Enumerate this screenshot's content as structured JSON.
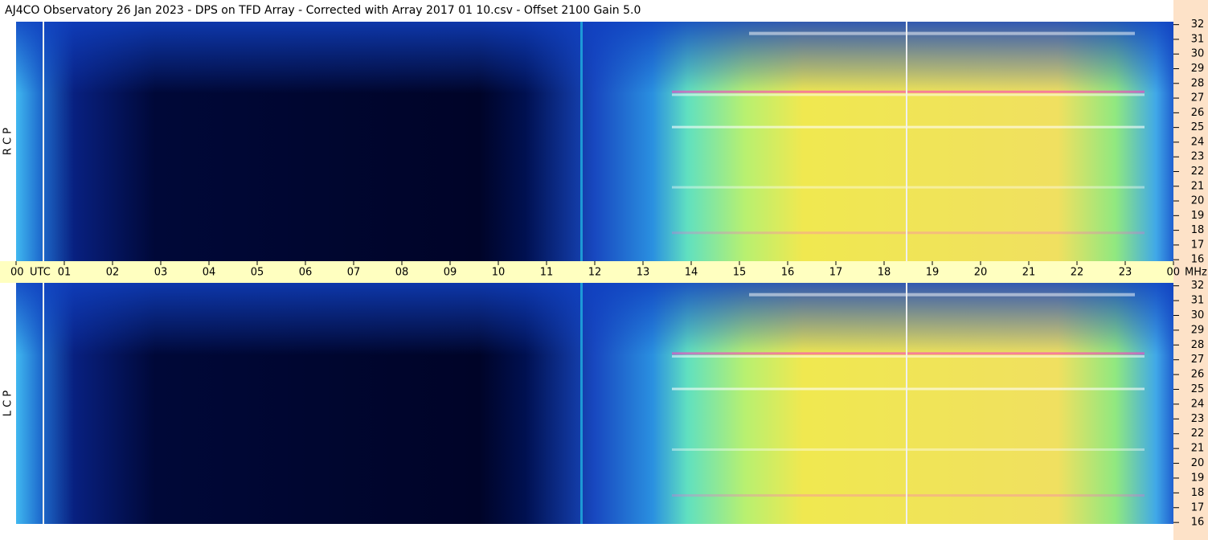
{
  "chart_data": {
    "type": "spectrogram",
    "title": "AJ4CO Observatory  26 Jan 2023  -  DPS on TFD Array  -  Corrected with Array 2017 01 10.csv  -  Offset 2100  Gain 5.0",
    "x_label": "UTC",
    "y_label": "MHz",
    "panels": [
      {
        "name": "R C P"
      },
      {
        "name": "L C P"
      }
    ],
    "xlim": [
      0,
      24
    ],
    "xticks": [
      {
        "value": 0,
        "label": "00"
      },
      {
        "value": 1,
        "label": "01"
      },
      {
        "value": 2,
        "label": "02"
      },
      {
        "value": 3,
        "label": "03"
      },
      {
        "value": 4,
        "label": "04"
      },
      {
        "value": 5,
        "label": "05"
      },
      {
        "value": 6,
        "label": "06"
      },
      {
        "value": 7,
        "label": "07"
      },
      {
        "value": 8,
        "label": "08"
      },
      {
        "value": 9,
        "label": "09"
      },
      {
        "value": 10,
        "label": "10"
      },
      {
        "value": 11,
        "label": "11"
      },
      {
        "value": 12,
        "label": "12"
      },
      {
        "value": 13,
        "label": "13"
      },
      {
        "value": 14,
        "label": "14"
      },
      {
        "value": 15,
        "label": "15"
      },
      {
        "value": 16,
        "label": "16"
      },
      {
        "value": 17,
        "label": "17"
      },
      {
        "value": 18,
        "label": "18"
      },
      {
        "value": 19,
        "label": "19"
      },
      {
        "value": 20,
        "label": "20"
      },
      {
        "value": 21,
        "label": "21"
      },
      {
        "value": 22,
        "label": "22"
      },
      {
        "value": 23,
        "label": "23"
      },
      {
        "value": 24,
        "label": "00"
      }
    ],
    "ylim": [
      15.9,
      32.2
    ],
    "yticks": [
      16,
      17,
      18,
      19,
      20,
      21,
      22,
      23,
      24,
      25,
      26,
      27,
      28,
      29,
      30,
      31,
      32
    ]
  }
}
